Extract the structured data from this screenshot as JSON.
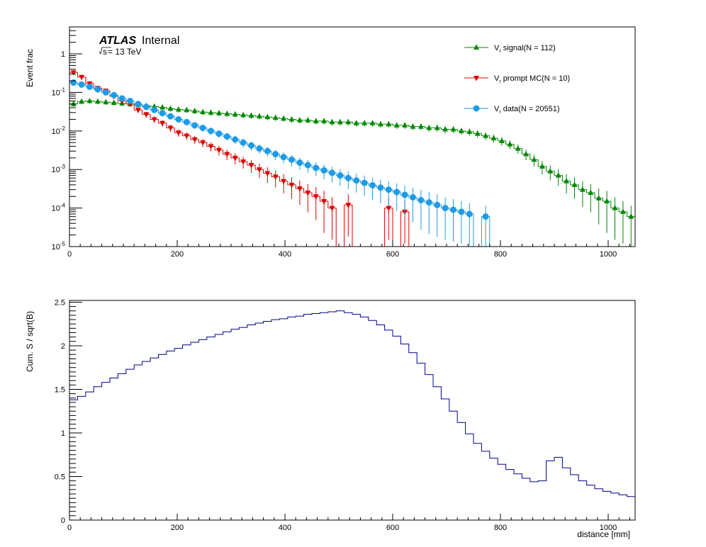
{
  "colors": {
    "signal": "#008800",
    "prompt_mc": "#dd0000",
    "data": "#1e9be6",
    "significance": "#000088",
    "axis": "#000000"
  },
  "chart_data": [
    {
      "type": "line",
      "subtype": "step-histogram-log",
      "title": "",
      "ylabel": "Event frac",
      "xlabel": "",
      "xlim": [
        0,
        1050
      ],
      "ylim": [
        1e-05,
        5
      ],
      "yscale": "log",
      "x_ticks": [
        "0",
        "200",
        "400",
        "600",
        "800",
        "1000"
      ],
      "y_ticks": [
        "10^-5",
        "10^-4",
        "10^-3",
        "10^-2",
        "10^-1",
        "1"
      ],
      "labels": {
        "experiment": "ATLAS",
        "status": "Internal",
        "sqrt_s": "s",
        "energy": " = 13 TeV"
      },
      "legend": {
        "position": "top-right",
        "entries": [
          {
            "label": "V",
            "sub": "r",
            "suffix": " signal(N = 112)",
            "series": "signal"
          },
          {
            "label": "V",
            "sub": "r",
            "suffix": " prompt MC(N = 10)",
            "series": "prompt_mc"
          },
          {
            "label": "V",
            "sub": "r",
            "suffix": " data(N = 20551)",
            "series": "data"
          }
        ]
      },
      "bin_width": 15,
      "series": [
        {
          "name": "signal",
          "marker": "triangle-up",
          "values": [
            0.05,
            0.058,
            0.06,
            0.058,
            0.056,
            0.054,
            0.052,
            0.05,
            0.047,
            0.045,
            0.043,
            0.041,
            0.038,
            0.036,
            0.035,
            0.033,
            0.031,
            0.03,
            0.029,
            0.028,
            0.027,
            0.026,
            0.025,
            0.024,
            0.023,
            0.022,
            0.021,
            0.02,
            0.019,
            0.019,
            0.018,
            0.018,
            0.017,
            0.017,
            0.017,
            0.016,
            0.016,
            0.016,
            0.015,
            0.015,
            0.014,
            0.014,
            0.013,
            0.013,
            0.012,
            0.012,
            0.011,
            0.011,
            0.01,
            0.0095,
            0.0085,
            0.0075,
            0.0065,
            0.0055,
            0.0045,
            0.0035,
            0.0025,
            0.0018,
            0.0012,
            0.0009,
            0.0007,
            0.0005,
            0.0004,
            0.0003,
            0.00025,
            0.00018,
            0.00015,
            0.0001,
            8e-05,
            6e-05
          ]
        },
        {
          "name": "prompt_mc",
          "marker": "triangle-down",
          "values": [
            0.33,
            0.25,
            0.17,
            0.13,
            0.11,
            0.08,
            0.06,
            0.05,
            0.035,
            0.027,
            0.02,
            0.016,
            0.012,
            0.009,
            0.0075,
            0.006,
            0.005,
            0.004,
            0.0032,
            0.0025,
            0.002,
            0.0016,
            0.0013,
            0.001,
            0.0008,
            0.00065,
            0.0005,
            0.0004,
            0.00032,
            0.00025,
            0.0002,
            0.00015,
            0.0001,
            0.0,
            0.00012,
            0.0,
            0.0,
            0.0,
            0.0,
            0.0001,
            0.0,
            8e-05,
            0.0,
            0.0,
            0.0,
            0.0,
            0.0,
            0.0,
            0.0,
            0.0,
            0.0,
            0.0,
            0.0,
            0.0,
            0.0,
            0.0,
            0.0,
            0.0,
            0.0,
            0.0,
            0.0,
            0.0,
            0.0,
            0.0,
            0.0,
            0.0,
            0.0,
            0.0,
            0.0,
            0.0
          ]
        },
        {
          "name": "data",
          "marker": "circle",
          "values": [
            0.18,
            0.16,
            0.14,
            0.12,
            0.1,
            0.085,
            0.07,
            0.06,
            0.05,
            0.042,
            0.035,
            0.029,
            0.024,
            0.02,
            0.017,
            0.014,
            0.012,
            0.01,
            0.0085,
            0.0072,
            0.006,
            0.005,
            0.0042,
            0.0035,
            0.003,
            0.0025,
            0.0021,
            0.0018,
            0.0015,
            0.0013,
            0.0011,
            0.00095,
            0.00082,
            0.0007,
            0.0006,
            0.00052,
            0.00045,
            0.00039,
            0.00034,
            0.0003,
            0.00026,
            0.00022,
            0.00019,
            0.00016,
            0.00014,
            0.00012,
            0.0001,
            9e-05,
            8e-05,
            7e-05,
            0.0,
            6e-05,
            0.0,
            0.0,
            0.0,
            0.0,
            0.0,
            0.0,
            0.0,
            0.0,
            0.0,
            0.0,
            0.0,
            0.0,
            0.0,
            0.0,
            0.0,
            0.0,
            0.0,
            0.0
          ]
        }
      ]
    },
    {
      "type": "line",
      "subtype": "step-histogram",
      "title": "",
      "ylabel": "Cum. S / sqrt(B)",
      "xlabel": "distance [mm]",
      "xlim": [
        0,
        1050
      ],
      "ylim": [
        0,
        2.52
      ],
      "x_ticks": [
        "0",
        "200",
        "400",
        "600",
        "800",
        "1000"
      ],
      "y_ticks": [
        "0",
        "0.5",
        "1",
        "1.5",
        "2",
        "2.5"
      ],
      "bin_width": 15,
      "series": [
        {
          "name": "significance",
          "values": [
            1.38,
            1.42,
            1.47,
            1.53,
            1.58,
            1.63,
            1.68,
            1.73,
            1.78,
            1.82,
            1.86,
            1.9,
            1.94,
            1.97,
            2.01,
            2.04,
            2.07,
            2.1,
            2.13,
            2.16,
            2.19,
            2.21,
            2.24,
            2.26,
            2.28,
            2.3,
            2.31,
            2.33,
            2.34,
            2.36,
            2.37,
            2.38,
            2.39,
            2.4,
            2.38,
            2.36,
            2.33,
            2.29,
            2.24,
            2.18,
            2.11,
            2.02,
            1.92,
            1.8,
            1.67,
            1.53,
            1.39,
            1.25,
            1.12,
            0.99,
            0.88,
            0.79,
            0.71,
            0.64,
            0.58,
            0.53,
            0.48,
            0.44,
            0.45,
            0.68,
            0.72,
            0.6,
            0.52,
            0.45,
            0.4,
            0.36,
            0.33,
            0.31,
            0.29,
            0.27
          ]
        }
      ]
    }
  ]
}
